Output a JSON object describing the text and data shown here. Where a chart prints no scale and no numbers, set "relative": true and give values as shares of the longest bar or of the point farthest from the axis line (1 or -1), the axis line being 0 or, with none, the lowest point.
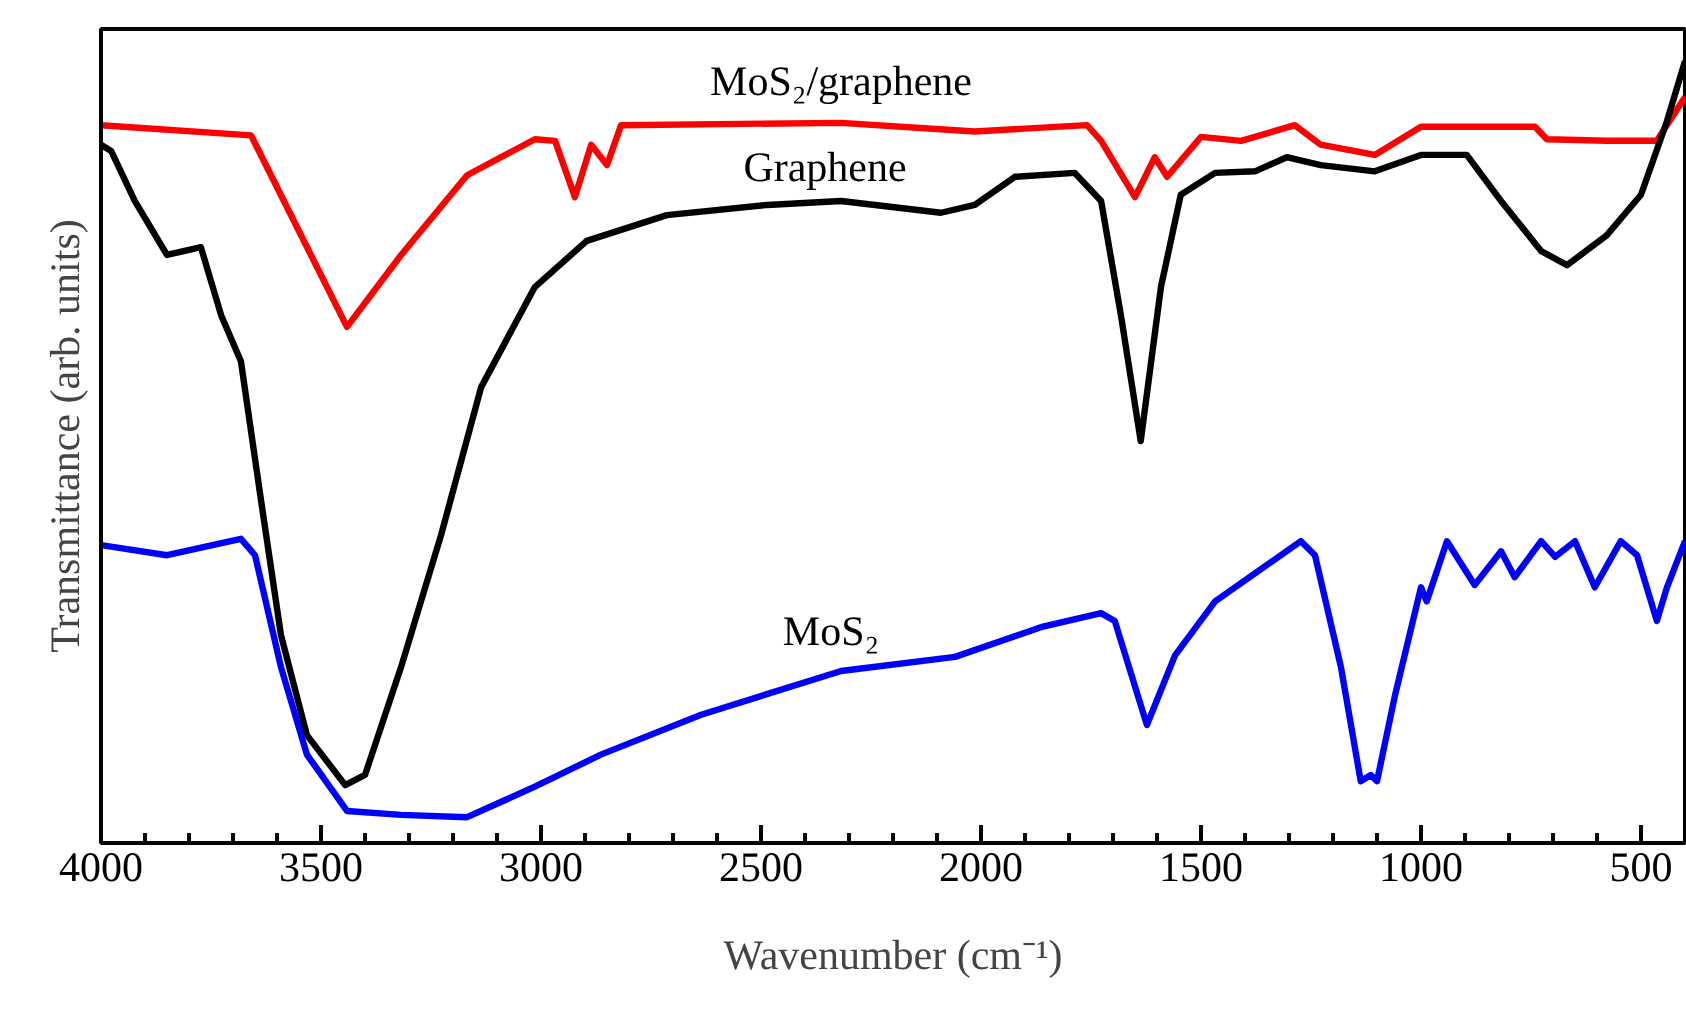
{
  "chart_data": {
    "type": "line",
    "xlabel": "Wavenumber (cm⁻¹)",
    "ylabel": "Transmittance (arb. units)",
    "relative": true,
    "grid": false,
    "marker": "none",
    "line_style": "solid",
    "xlim": [
      4000,
      400
    ],
    "xticks": [
      4000,
      {
        "value": 3900,
        "label": null
      },
      {
        "value": 3800,
        "label": null
      },
      {
        "value": 3700,
        "label": null
      },
      {
        "value": 3600,
        "label": null
      },
      3500,
      {
        "value": 3400,
        "label": null
      },
      {
        "value": 3300,
        "label": null
      },
      {
        "value": 3200,
        "label": null
      },
      {
        "value": 3100,
        "label": null
      },
      3000,
      {
        "value": 2900,
        "label": null
      },
      {
        "value": 2800,
        "label": null
      },
      {
        "value": 2700,
        "label": null
      },
      {
        "value": 2600,
        "label": null
      },
      2500,
      {
        "value": 2400,
        "label": null
      },
      {
        "value": 2300,
        "label": null
      },
      {
        "value": 2200,
        "label": null
      },
      {
        "value": 2100,
        "label": null
      },
      2000,
      {
        "value": 1900,
        "label": null
      },
      {
        "value": 1800,
        "label": null
      },
      {
        "value": 1700,
        "label": null
      },
      {
        "value": 1600,
        "label": null
      },
      1500,
      {
        "value": 1400,
        "label": null
      },
      {
        "value": 1300,
        "label": null
      },
      {
        "value": 1200,
        "label": null
      },
      {
        "value": 1100,
        "label": null
      },
      1000,
      {
        "value": 900,
        "label": null
      },
      {
        "value": 800,
        "label": null
      },
      {
        "value": 700,
        "label": null
      },
      {
        "value": 600,
        "label": null
      },
      500
    ],
    "series": [
      {
        "name": "MoS₂/graphene",
        "color": "#ff0000",
        "x": [
          4000,
          3659,
          3441,
          3318,
          3168,
          3014,
          2968,
          2923,
          2886,
          2850,
          2818,
          2318,
          2014,
          1759,
          1727,
          1650,
          1605,
          1577,
          1500,
          1409,
          1287,
          1228,
          1105,
          1000,
          741,
          714,
          578,
          464,
          400
        ],
        "values": [
          0.918,
          0.905,
          0.66,
          0.752,
          0.854,
          0.9,
          0.898,
          0.826,
          0.893,
          0.867,
          0.918,
          0.921,
          0.91,
          0.918,
          0.898,
          0.826,
          0.877,
          0.852,
          0.903,
          0.898,
          0.918,
          0.893,
          0.88,
          0.916,
          0.916,
          0.9,
          0.898,
          0.898,
          0.954
        ]
      },
      {
        "name": "Graphene",
        "color": "#000000",
        "x": [
          4000,
          3977,
          3923,
          3850,
          3773,
          3727,
          3682,
          3636,
          3591,
          3532,
          3445,
          3400,
          3318,
          3227,
          3136,
          3014,
          2896,
          2714,
          2486,
          2318,
          2091,
          2014,
          1923,
          1787,
          1727,
          1682,
          1637,
          1591,
          1546,
          1468,
          1377,
          1305,
          1228,
          1105,
          1000,
          896,
          818,
          727,
          668,
          578,
          500,
          441,
          400
        ],
        "values": [
          0.893,
          0.885,
          0.821,
          0.752,
          0.762,
          0.675,
          0.616,
          0.437,
          0.266,
          0.138,
          0.074,
          0.087,
          0.225,
          0.394,
          0.583,
          0.711,
          0.77,
          0.803,
          0.816,
          0.821,
          0.806,
          0.816,
          0.852,
          0.857,
          0.821,
          0.675,
          0.514,
          0.711,
          0.829,
          0.857,
          0.859,
          0.877,
          0.867,
          0.859,
          0.88,
          0.88,
          0.821,
          0.757,
          0.739,
          0.777,
          0.829,
          0.923,
          1.0
        ]
      },
      {
        "name": "MoS₂",
        "color": "#0000ff",
        "x": [
          4000,
          3850,
          3682,
          3650,
          3591,
          3532,
          3441,
          3318,
          3168,
          3014,
          2864,
          2636,
          2318,
          2059,
          1864,
          1727,
          1696,
          1623,
          1559,
          1468,
          1273,
          1241,
          1182,
          1137,
          1114,
          1100,
          1059,
          1000,
          987,
          941,
          878,
          818,
          787,
          727,
          695,
          650,
          605,
          546,
          509,
          464,
          441,
          400
        ],
        "values": [
          0.381,
          0.368,
          0.389,
          0.368,
          0.225,
          0.113,
          0.041,
          0.036,
          0.033,
          0.072,
          0.113,
          0.164,
          0.22,
          0.238,
          0.276,
          0.294,
          0.284,
          0.151,
          0.24,
          0.309,
          0.386,
          0.368,
          0.225,
          0.079,
          0.087,
          0.079,
          0.189,
          0.327,
          0.309,
          0.386,
          0.33,
          0.373,
          0.34,
          0.386,
          0.366,
          0.386,
          0.327,
          0.386,
          0.368,
          0.284,
          0.327,
          0.386
        ]
      }
    ]
  }
}
